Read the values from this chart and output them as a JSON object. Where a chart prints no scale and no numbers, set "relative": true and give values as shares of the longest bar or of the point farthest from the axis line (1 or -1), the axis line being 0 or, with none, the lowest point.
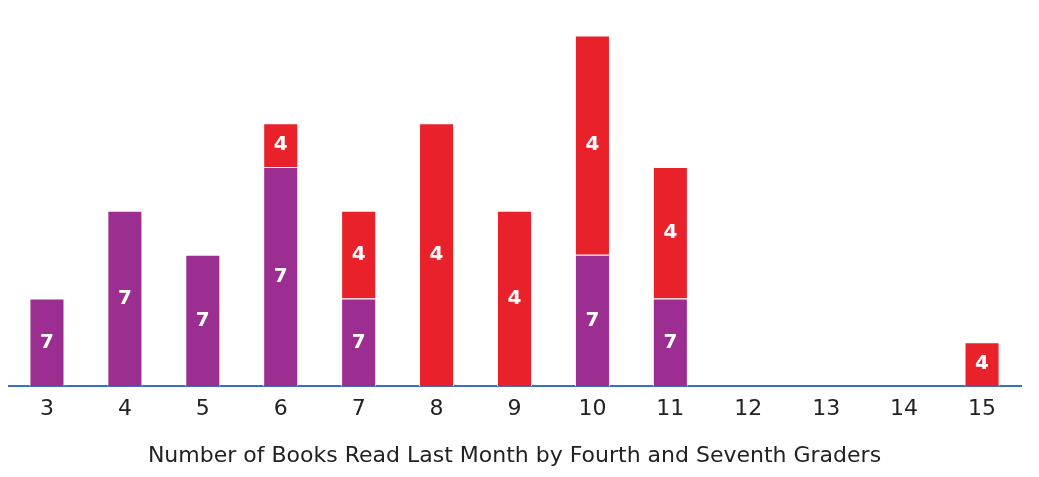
{
  "chart_data": {
    "type": "bar",
    "stacked": true,
    "relative": true,
    "xlabel": "Number of Books Read Last Month by Fourth and Seventh Graders",
    "categories": [
      "3",
      "4",
      "5",
      "6",
      "7",
      "8",
      "9",
      "10",
      "11",
      "12",
      "13",
      "14",
      "15"
    ],
    "grid": false,
    "series": [
      {
        "name": "7",
        "color": "#9c2d91",
        "values": [
          0.25,
          0.5,
          0.375,
          0.625,
          0.25,
          0,
          0,
          0.375,
          0.25,
          0,
          0,
          0,
          0
        ]
      },
      {
        "name": "4",
        "color": "#e8212b",
        "values": [
          0,
          0,
          0,
          0.125,
          0.25,
          0.75,
          0.5,
          0.625,
          0.375,
          0,
          0,
          0,
          0.125
        ]
      }
    ]
  }
}
